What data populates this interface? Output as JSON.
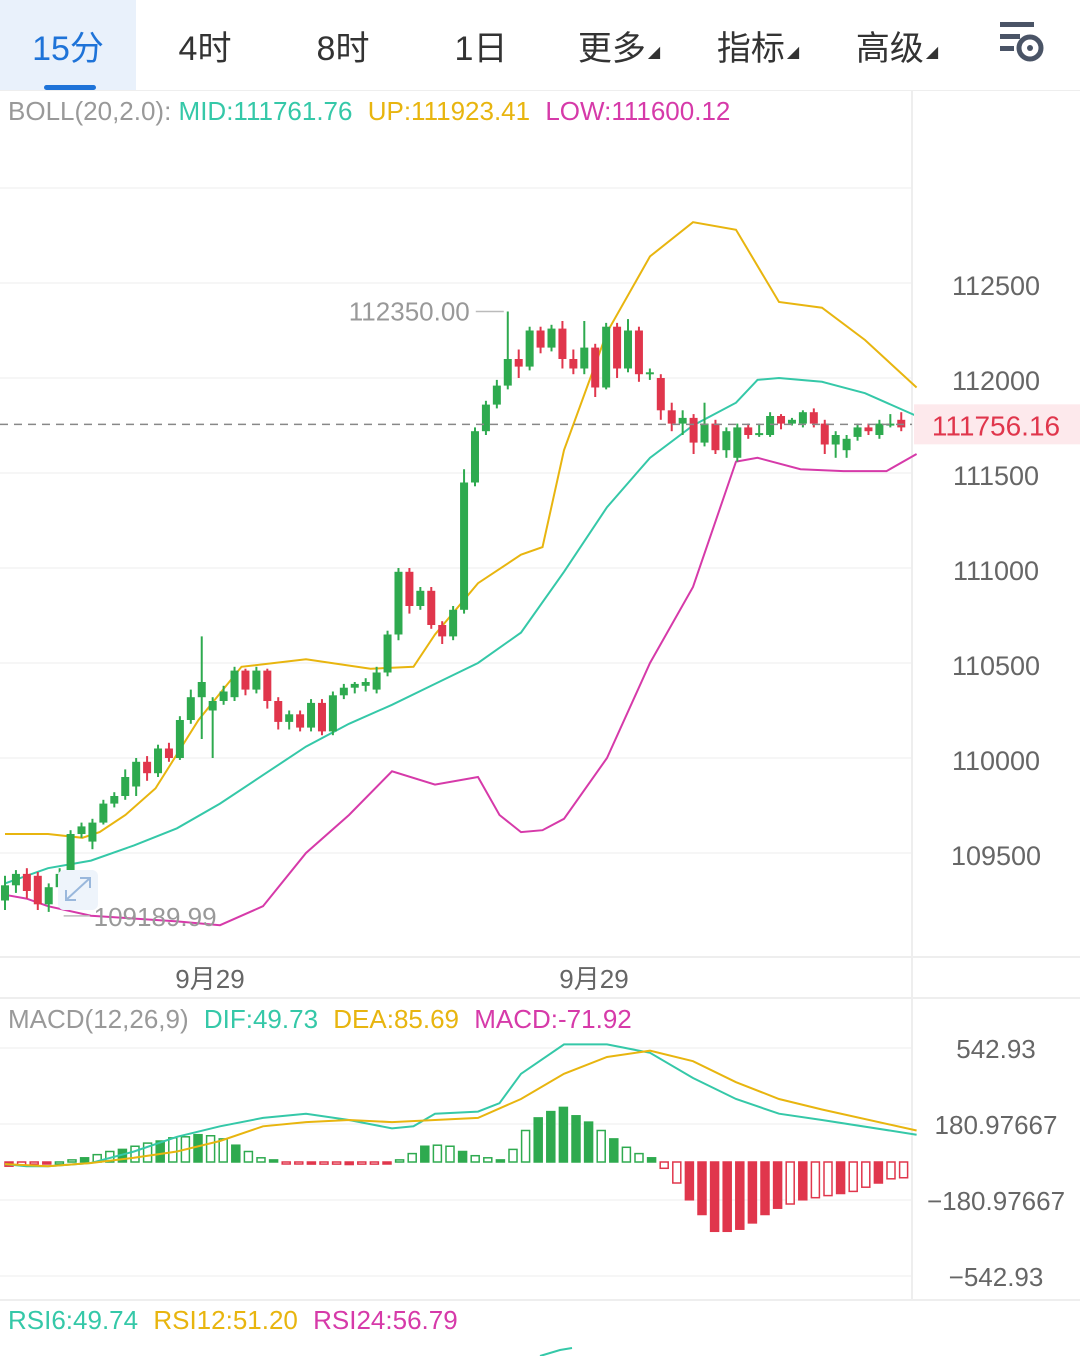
{
  "tabs": [
    {
      "label": "15分",
      "active": true,
      "dropdown": false
    },
    {
      "label": "4时",
      "active": false,
      "dropdown": false
    },
    {
      "label": "8时",
      "active": false,
      "dropdown": false
    },
    {
      "label": "1日",
      "active": false,
      "dropdown": false
    },
    {
      "label": "更多",
      "active": false,
      "dropdown": true
    },
    {
      "label": "指标",
      "active": false,
      "dropdown": true
    },
    {
      "label": "高级",
      "active": false,
      "dropdown": true
    }
  ],
  "settings_icon": "chart-settings-icon",
  "colors": {
    "up": "#2eaa4f",
    "down": "#e0364c",
    "mid": "#35c8a8",
    "upper": "#e8b50f",
    "lower": "#d63aa9",
    "grid": "#eeeeee",
    "axis": "#666666",
    "current": "#e0364c"
  },
  "boll": {
    "name": "BOLL(20,2.0):",
    "mid": "MID:111761.76",
    "up": "UP:111923.41",
    "low": "LOW:111600.12"
  },
  "macd": {
    "name": "MACD(12,26,9)",
    "dif": "DIF:49.73",
    "dea": "DEA:85.69",
    "macd": "MACD:-71.92"
  },
  "rsi": {
    "rsi6": "RSI6:49.74",
    "rsi12": "RSI12:51.20",
    "rsi24": "RSI24:56.79"
  },
  "chart_data": [
    {
      "type": "candlestick",
      "title": "BOLL(20,2.0)",
      "y_ticks": [
        112500,
        112000,
        111500,
        111000,
        110500,
        110000,
        109500
      ],
      "current_price": "111756.16",
      "high_label": "112350.00",
      "high_value": 112350,
      "low_label": "109189.99",
      "low_value": 109189.99,
      "x_labels": [
        "9月29",
        "9月29"
      ],
      "candles": [
        [
          109250,
          109330,
          109200,
          109380
        ],
        [
          109330,
          109390,
          109290,
          109410
        ],
        [
          109390,
          109300,
          109260,
          109420
        ],
        [
          109380,
          109230,
          109200,
          109400
        ],
        [
          109230,
          109320,
          109190,
          109340
        ],
        [
          109320,
          109390,
          109300,
          109420
        ],
        [
          109390,
          109600,
          109380,
          109620
        ],
        [
          109600,
          109640,
          109580,
          109660
        ],
        [
          109560,
          109660,
          109520,
          109680
        ],
        [
          109660,
          109760,
          109650,
          109780
        ],
        [
          109760,
          109800,
          109740,
          109820
        ],
        [
          109800,
          109900,
          109780,
          109940
        ],
        [
          109850,
          109980,
          109800,
          110000
        ],
        [
          109980,
          109920,
          109880,
          110010
        ],
        [
          109920,
          110050,
          109900,
          110070
        ],
        [
          110050,
          110000,
          109980,
          110080
        ],
        [
          110000,
          110200,
          109990,
          110220
        ],
        [
          110200,
          110320,
          110180,
          110360
        ],
        [
          110320,
          110400,
          110100,
          110640
        ],
        [
          110250,
          110300,
          110000,
          110320
        ],
        [
          110300,
          110350,
          110280,
          110380
        ],
        [
          110320,
          110460,
          110300,
          110480
        ],
        [
          110460,
          110360,
          110330,
          110470
        ],
        [
          110360,
          110460,
          110340,
          110480
        ],
        [
          110460,
          110300,
          110260,
          110470
        ],
        [
          110300,
          110190,
          110150,
          110320
        ],
        [
          110190,
          110230,
          110150,
          110250
        ],
        [
          110230,
          110160,
          110140,
          110250
        ],
        [
          110160,
          110290,
          110140,
          110310
        ],
        [
          110290,
          110140,
          110120,
          110310
        ],
        [
          110140,
          110330,
          110120,
          110350
        ],
        [
          110330,
          110370,
          110310,
          110390
        ],
        [
          110370,
          110390,
          110340,
          110400
        ],
        [
          110380,
          110400,
          110350,
          110420
        ],
        [
          110360,
          110450,
          110340,
          110480
        ],
        [
          110450,
          110650,
          110430,
          110670
        ],
        [
          110650,
          110980,
          110620,
          111000
        ],
        [
          110980,
          110800,
          110760,
          111000
        ],
        [
          110800,
          110880,
          110780,
          110900
        ],
        [
          110880,
          110700,
          110680,
          110900
        ],
        [
          110700,
          110640,
          110600,
          110720
        ],
        [
          110640,
          110780,
          110620,
          110800
        ],
        [
          110780,
          111450,
          110760,
          111520
        ],
        [
          111450,
          111720,
          111430,
          111740
        ],
        [
          111720,
          111860,
          111700,
          111880
        ],
        [
          111860,
          111960,
          111840,
          111990
        ],
        [
          111960,
          112100,
          111940,
          112350
        ],
        [
          112100,
          112060,
          112000,
          112150
        ],
        [
          112060,
          112250,
          112040,
          112270
        ],
        [
          112250,
          112160,
          112130,
          112270
        ],
        [
          112160,
          112260,
          112140,
          112280
        ],
        [
          112260,
          112100,
          112050,
          112300
        ],
        [
          112100,
          112050,
          112020,
          112150
        ],
        [
          112050,
          112160,
          112020,
          112300
        ],
        [
          112160,
          111950,
          111900,
          112180
        ],
        [
          111950,
          112270,
          111940,
          112290
        ],
        [
          112270,
          112050,
          112000,
          112290
        ],
        [
          112050,
          112250,
          112030,
          112310
        ],
        [
          112250,
          112020,
          111980,
          112270
        ],
        [
          112020,
          112030,
          111990,
          112050
        ],
        [
          112000,
          111830,
          111780,
          112020
        ],
        [
          111830,
          111760,
          111720,
          111870
        ],
        [
          111760,
          111790,
          111700,
          111830
        ],
        [
          111790,
          111660,
          111600,
          111810
        ],
        [
          111660,
          111760,
          111640,
          111870
        ],
        [
          111760,
          111620,
          111600,
          111780
        ],
        [
          111620,
          111720,
          111580,
          111740
        ],
        [
          111580,
          111740,
          111560,
          111760
        ],
        [
          111740,
          111700,
          111680,
          111760
        ],
        [
          111700,
          111710,
          111690,
          111760
        ],
        [
          111700,
          111800,
          111690,
          111820
        ],
        [
          111800,
          111760,
          111730,
          111810
        ],
        [
          111760,
          111780,
          111750,
          111790
        ],
        [
          111760,
          111820,
          111740,
          111830
        ],
        [
          111820,
          111760,
          111740,
          111840
        ],
        [
          111760,
          111650,
          111600,
          111780
        ],
        [
          111650,
          111700,
          111580,
          111720
        ],
        [
          111620,
          111680,
          111580,
          111700
        ],
        [
          111690,
          111740,
          111670,
          111760
        ],
        [
          111740,
          111720,
          111700,
          111760
        ],
        [
          111700,
          111760,
          111680,
          111780
        ],
        [
          111760,
          111760,
          111740,
          111810
        ],
        [
          111780,
          111740,
          111720,
          111820
        ]
      ],
      "mid": [
        [
          0,
          109340
        ],
        [
          10,
          109420
        ],
        [
          20,
          109460
        ],
        [
          30,
          109540
        ],
        [
          40,
          109630
        ],
        [
          50,
          109760
        ],
        [
          60,
          109910
        ],
        [
          70,
          110060
        ],
        [
          80,
          110180
        ],
        [
          90,
          110280
        ],
        [
          100,
          110390
        ],
        [
          110,
          110500
        ],
        [
          120,
          110660
        ],
        [
          130,
          110980
        ],
        [
          140,
          111320
        ],
        [
          150,
          111580
        ],
        [
          160,
          111750
        ],
        [
          170,
          111870
        ],
        [
          175,
          111990
        ],
        [
          180,
          112000
        ],
        [
          190,
          111980
        ],
        [
          200,
          111920
        ],
        [
          212,
          111800
        ]
      ],
      "upper": [
        [
          0,
          109600
        ],
        [
          10,
          109600
        ],
        [
          18,
          109580
        ],
        [
          22,
          109610
        ],
        [
          28,
          109700
        ],
        [
          35,
          109840
        ],
        [
          45,
          110200
        ],
        [
          55,
          110480
        ],
        [
          70,
          110520
        ],
        [
          85,
          110470
        ],
        [
          95,
          110480
        ],
        [
          100,
          110650
        ],
        [
          110,
          110920
        ],
        [
          120,
          111070
        ],
        [
          125,
          111110
        ],
        [
          130,
          111620
        ],
        [
          140,
          112240
        ],
        [
          150,
          112640
        ],
        [
          160,
          112820
        ],
        [
          170,
          112780
        ],
        [
          180,
          112400
        ],
        [
          190,
          112370
        ],
        [
          200,
          112200
        ],
        [
          212,
          111950
        ]
      ],
      "lower": [
        [
          0,
          109280
        ],
        [
          5,
          109260
        ],
        [
          10,
          109220
        ],
        [
          20,
          109170
        ],
        [
          40,
          109140
        ],
        [
          50,
          109120
        ],
        [
          60,
          109220
        ],
        [
          70,
          109500
        ],
        [
          80,
          109700
        ],
        [
          90,
          109930
        ],
        [
          100,
          109860
        ],
        [
          110,
          109900
        ],
        [
          115,
          109700
        ],
        [
          120,
          109610
        ],
        [
          125,
          109620
        ],
        [
          130,
          109680
        ],
        [
          140,
          110000
        ],
        [
          150,
          110500
        ],
        [
          160,
          110900
        ],
        [
          170,
          111560
        ],
        [
          175,
          111580
        ],
        [
          185,
          111520
        ],
        [
          195,
          111510
        ],
        [
          205,
          111510
        ],
        [
          212,
          111600
        ]
      ]
    },
    {
      "type": "macd",
      "title": "MACD(12,26,9)",
      "y_ticks": [
        542.93,
        180.97667,
        -180.97667,
        -542.93
      ],
      "dif": [
        [
          0,
          -10
        ],
        [
          5,
          -20
        ],
        [
          10,
          -20
        ],
        [
          20,
          -5
        ],
        [
          30,
          50
        ],
        [
          40,
          120
        ],
        [
          50,
          170
        ],
        [
          60,
          210
        ],
        [
          70,
          230
        ],
        [
          80,
          200
        ],
        [
          90,
          160
        ],
        [
          95,
          170
        ],
        [
          100,
          230
        ],
        [
          110,
          240
        ],
        [
          115,
          280
        ],
        [
          120,
          420
        ],
        [
          130,
          560
        ],
        [
          140,
          560
        ],
        [
          150,
          520
        ],
        [
          160,
          400
        ],
        [
          170,
          300
        ],
        [
          180,
          230
        ],
        [
          190,
          200
        ],
        [
          212,
          130
        ]
      ],
      "dea": [
        [
          0,
          -10
        ],
        [
          10,
          -20
        ],
        [
          20,
          -5
        ],
        [
          30,
          20
        ],
        [
          40,
          50
        ],
        [
          50,
          100
        ],
        [
          60,
          170
        ],
        [
          70,
          190
        ],
        [
          80,
          200
        ],
        [
          90,
          190
        ],
        [
          100,
          200
        ],
        [
          110,
          210
        ],
        [
          120,
          300
        ],
        [
          130,
          420
        ],
        [
          140,
          500
        ],
        [
          150,
          530
        ],
        [
          160,
          480
        ],
        [
          170,
          380
        ],
        [
          180,
          300
        ],
        [
          190,
          250
        ],
        [
          212,
          150
        ]
      ],
      "hist": [
        -20,
        -15,
        -10,
        -5,
        0,
        10,
        20,
        35,
        50,
        60,
        75,
        90,
        100,
        115,
        120,
        130,
        125,
        110,
        80,
        50,
        20,
        10,
        -5,
        -8,
        -10,
        -10,
        -10,
        -12,
        -10,
        -10,
        -8,
        10,
        40,
        75,
        80,
        75,
        50,
        30,
        20,
        10,
        60,
        150,
        210,
        240,
        260,
        220,
        190,
        150,
        110,
        70,
        40,
        20,
        -30,
        -100,
        -180,
        -250,
        -330,
        -330,
        -320,
        -290,
        -250,
        -220,
        -200,
        -180,
        -170,
        -160,
        -150,
        -140,
        -120,
        -100,
        -80,
        -75
      ]
    }
  ]
}
